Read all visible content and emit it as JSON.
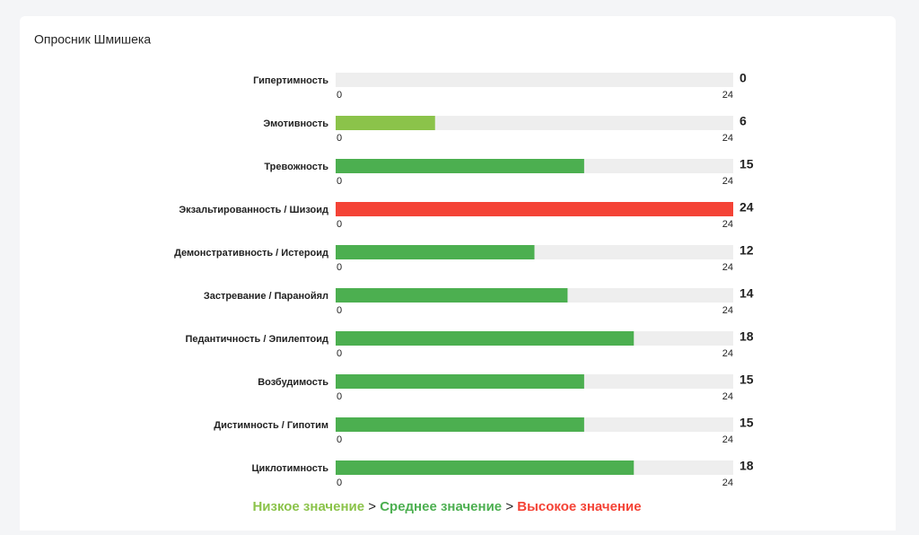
{
  "chart_data": {
    "type": "bar",
    "orientation": "horizontal",
    "title": "Опросник Шмишека",
    "categories": [
      "Гипертимность",
      "Эмотивность",
      "Тревожность",
      "Экзальтированность / Шизоид",
      "Демонстративность / Истероид",
      "Застревание / Паранойял",
      "Педантичность / Эпилептоид",
      "Возбудимость",
      "Дистимность / Гипотим",
      "Циклотимность"
    ],
    "values": [
      0,
      6,
      15,
      24,
      12,
      14,
      18,
      15,
      15,
      18
    ],
    "colors": [
      "#4caf50",
      "#8bc34a",
      "#4caf50",
      "#f44336",
      "#4caf50",
      "#4caf50",
      "#4caf50",
      "#4caf50",
      "#4caf50",
      "#4caf50"
    ],
    "track_color": "#eeeeee",
    "xlim": [
      0,
      24
    ],
    "xticks": [
      0,
      24
    ],
    "legend": [
      {
        "name": "Низкое значение",
        "color": "#8bc34a"
      },
      {
        "name": "Среднее значение",
        "color": "#4caf50"
      },
      {
        "name": "Высокое значение",
        "color": "#f44336"
      }
    ],
    "legend_separator": ">"
  }
}
